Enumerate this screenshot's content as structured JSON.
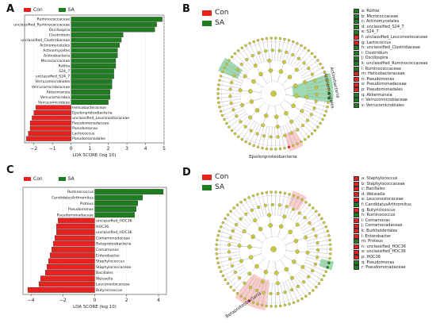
{
  "colors": {
    "con": "#e8231f",
    "sa": "#1e7d1e",
    "node": "#c8c83a",
    "grid": "#dddddd"
  },
  "panels": {
    "A": {
      "letter": "A",
      "legend": [
        "Con",
        "SA"
      ],
      "chart_data": {
        "type": "bar",
        "orientation": "horizontal",
        "xlabel": "LDA SCORE (log 10)",
        "xlim": [
          -2.5,
          5
        ],
        "xticks": [
          -2,
          -1,
          0,
          1,
          2,
          3,
          4,
          5
        ],
        "bars": [
          {
            "label": "Ruminococcaceae",
            "value": 4.9,
            "group": "sa"
          },
          {
            "label": "unclassified_Ruminococcaceae",
            "value": 4.6,
            "group": "sa"
          },
          {
            "label": "Oscillospira",
            "value": 4.5,
            "group": "sa"
          },
          {
            "label": "Clostridium",
            "value": 2.8,
            "group": "sa"
          },
          {
            "label": "unclassified_Clostridiaceae",
            "value": 2.7,
            "group": "sa"
          },
          {
            "label": "Actinomycetales",
            "value": 2.6,
            "group": "sa"
          },
          {
            "label": "Actinomycetes",
            "value": 2.5,
            "group": "sa"
          },
          {
            "label": "Actinobacteria",
            "value": 2.5,
            "group": "sa"
          },
          {
            "label": "Micrococcaceae",
            "value": 2.4,
            "group": "sa"
          },
          {
            "label": "Rothia",
            "value": 2.4,
            "group": "sa"
          },
          {
            "label": "S24_7",
            "value": 2.3,
            "group": "sa"
          },
          {
            "label": "unclassified_S24_7",
            "value": 2.3,
            "group": "sa"
          },
          {
            "label": "Verrucomicrobiales",
            "value": 2.2,
            "group": "sa"
          },
          {
            "label": "Verrucomicrobiaceae",
            "value": 2.2,
            "group": "sa"
          },
          {
            "label": "Akkermansia",
            "value": 2.1,
            "group": "sa"
          },
          {
            "label": "Verrucomicrobia",
            "value": 2.1,
            "group": "sa"
          },
          {
            "label": "Verrucomicrobiae",
            "value": 2.0,
            "group": "sa"
          },
          {
            "label": "Helicobacteraceae",
            "value": -1.9,
            "group": "con"
          },
          {
            "label": "Epsilonproteobacteria",
            "value": -2.0,
            "group": "con"
          },
          {
            "label": "unclassified_Leuconostocaceae",
            "value": -2.1,
            "group": "con"
          },
          {
            "label": "Pseudomonadaceae",
            "value": -2.2,
            "group": "con"
          },
          {
            "label": "Pseudomonas",
            "value": -2.2,
            "group": "con"
          },
          {
            "label": "Lactococcus",
            "value": -2.3,
            "group": "con"
          },
          {
            "label": "Pseudomonadales",
            "value": -2.4,
            "group": "con"
          }
        ]
      }
    },
    "B": {
      "letter": "B",
      "legend": [
        "Con",
        "SA"
      ],
      "sector_labels": [
        "Actinomycetales",
        "Actinobacteria",
        "Epsilonproteobacteria"
      ],
      "taxa": [
        {
          "text": "a: Rothia",
          "group": "sa"
        },
        {
          "text": "b: Micrococcaceae",
          "group": "sa"
        },
        {
          "text": "c: Actinomycetales",
          "group": "sa"
        },
        {
          "text": "d: unclassified_S24_7",
          "group": "sa"
        },
        {
          "text": "e: S24_7",
          "group": "sa"
        },
        {
          "text": "f: unclassified_Leuconostocaceae",
          "group": "con"
        },
        {
          "text": "g: Lactococcus",
          "group": "con"
        },
        {
          "text": "h: unclassified_Clostridiaceae",
          "group": "sa"
        },
        {
          "text": "i: Clostridium",
          "group": "sa"
        },
        {
          "text": "j: Oscillospira",
          "group": "sa"
        },
        {
          "text": "k: unclassified_Ruminococcaceae",
          "group": "sa"
        },
        {
          "text": "l: Ruminococcaceae",
          "group": "sa"
        },
        {
          "text": "m: Helicobacteraceae",
          "group": "con"
        },
        {
          "text": "n: Pseudomonas",
          "group": "con"
        },
        {
          "text": "o: Pseudomonadaceae",
          "group": "con"
        },
        {
          "text": "p: Pseudomonadales",
          "group": "con"
        },
        {
          "text": "q: Akkermansia",
          "group": "sa"
        },
        {
          "text": "r: Verrucomicrobiaceae",
          "group": "sa"
        },
        {
          "text": "s: Verrucomicrobiales",
          "group": "sa"
        }
      ]
    },
    "C": {
      "letter": "C",
      "legend": [
        "Con",
        "SA"
      ],
      "chart_data": {
        "type": "bar",
        "orientation": "horizontal",
        "xlabel": "LDA SCORE (log 10)",
        "xlim": [
          -4.5,
          4.5
        ],
        "xticks": [
          -4,
          -2,
          0,
          2,
          4
        ],
        "bars": [
          {
            "label": "Ruminococcus",
            "value": 4.3,
            "group": "sa"
          },
          {
            "label": "CandidatusArthromitus",
            "value": 3.0,
            "group": "sa"
          },
          {
            "label": "Proteus",
            "value": 2.7,
            "group": "sa"
          },
          {
            "label": "Pseudomonas",
            "value": 2.6,
            "group": "sa"
          },
          {
            "label": "Pseudomonadaceae",
            "value": 2.5,
            "group": "sa"
          },
          {
            "label": "unclassified_HOC36",
            "value": -2.3,
            "group": "con"
          },
          {
            "label": "HOC36",
            "value": -2.4,
            "group": "con"
          },
          {
            "label": "unclassified_HOC36",
            "value": -2.4,
            "group": "con"
          },
          {
            "label": "Comamonadaceae",
            "value": -2.5,
            "group": "con"
          },
          {
            "label": "Betaproteobacteria",
            "value": -2.6,
            "group": "con"
          },
          {
            "label": "Comamonas",
            "value": -2.7,
            "group": "con"
          },
          {
            "label": "Enterobacter",
            "value": -2.8,
            "group": "con"
          },
          {
            "label": "Staphylococcus",
            "value": -2.9,
            "group": "con"
          },
          {
            "label": "Staphylococcaceae",
            "value": -3.0,
            "group": "con"
          },
          {
            "label": "Bacillales",
            "value": -3.1,
            "group": "con"
          },
          {
            "label": "Weissella",
            "value": -3.4,
            "group": "con"
          },
          {
            "label": "Leuconostocaceae",
            "value": -3.5,
            "group": "con"
          },
          {
            "label": "Butyricicoccus",
            "value": -4.2,
            "group": "con"
          }
        ]
      }
    },
    "D": {
      "letter": "D",
      "legend": [
        "Con",
        "SA"
      ],
      "sector_labels": [
        "Betaproteobacteria"
      ],
      "taxa": [
        {
          "text": "a: Staphylococcus",
          "group": "con"
        },
        {
          "text": "b: Staphylococcaceae",
          "group": "con"
        },
        {
          "text": "c: Bacillales",
          "group": "con"
        },
        {
          "text": "d: Weissella",
          "group": "con"
        },
        {
          "text": "e: Leuconostocaceae",
          "group": "con"
        },
        {
          "text": "f: CandidatusArthromitus",
          "group": "sa"
        },
        {
          "text": "g: Butyricicoccus",
          "group": "con"
        },
        {
          "text": "h: Ruminococcus",
          "group": "sa"
        },
        {
          "text": "i: Comamonas",
          "group": "con"
        },
        {
          "text": "j: Comamonadaceae",
          "group": "con"
        },
        {
          "text": "k: Burkholderiales",
          "group": "con"
        },
        {
          "text": "l: Enterobacter",
          "group": "con"
        },
        {
          "text": "m: Proteus",
          "group": "sa"
        },
        {
          "text": "n: unclassified_HOC36",
          "group": "con"
        },
        {
          "text": "o: unclassified_HOC36",
          "group": "con"
        },
        {
          "text": "p: HOC36",
          "group": "con"
        },
        {
          "text": "q: Pseudomonas",
          "group": "sa"
        },
        {
          "text": "r: Pseudomonadaceae",
          "group": "sa"
        }
      ]
    }
  }
}
